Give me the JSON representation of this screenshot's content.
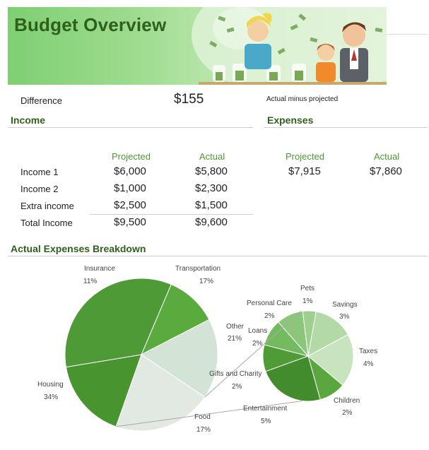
{
  "banner": {
    "title": "Budget Overview"
  },
  "difference": {
    "label": "Difference",
    "value": "$155",
    "note": "Actual minus projected"
  },
  "income": {
    "title": "Income",
    "headers": {
      "projected": "Projected",
      "actual": "Actual"
    },
    "rows": [
      {
        "label": "Income 1",
        "projected": "$6,000",
        "actual": "$5,800"
      },
      {
        "label": "Income 2",
        "projected": "$1,000",
        "actual": "$2,300"
      },
      {
        "label": "Extra income",
        "projected": "$2,500",
        "actual": "$1,500"
      },
      {
        "label": "Total Income",
        "projected": "$9,500",
        "actual": "$9,600"
      }
    ]
  },
  "expenses": {
    "title": "Expenses",
    "headers": {
      "projected": "Projected",
      "actual": "Actual"
    },
    "projected": "$7,915",
    "actual": "$7,860"
  },
  "breakdown": {
    "title": "Actual Expenses Breakdown"
  },
  "chart_data": {
    "type": "pie",
    "title": "Actual Expenses Breakdown",
    "main_pie": [
      {
        "name": "Insurance",
        "percent": 11,
        "label": "11%"
      },
      {
        "name": "Transportation",
        "percent": 17,
        "label": "17%"
      },
      {
        "name": "Other",
        "percent": 21,
        "label": "21%"
      },
      {
        "name": "Food",
        "percent": 17,
        "label": "17%"
      },
      {
        "name": "Housing",
        "percent": 34,
        "label": "34%"
      }
    ],
    "secondary_pie": [
      {
        "name": "Pets",
        "percent": 1,
        "label": "1%"
      },
      {
        "name": "Savings",
        "percent": 3,
        "label": "3%"
      },
      {
        "name": "Taxes",
        "percent": 4,
        "label": "4%"
      },
      {
        "name": "Children",
        "percent": 2,
        "label": "2%"
      },
      {
        "name": "Entertainment",
        "percent": 5,
        "label": "5%"
      },
      {
        "name": "Gifts and Charity",
        "percent": 2,
        "label": "2%"
      },
      {
        "name": "Loans",
        "percent": 2,
        "label": "2%"
      },
      {
        "name": "Personal Care",
        "percent": 2,
        "label": "2%"
      }
    ],
    "colors": {
      "Housing": "#4e9a36",
      "Insurance": "#5aab3e",
      "Transportation": "#d3e3d6",
      "Other": "#e2e9e2",
      "Food": "#48942f",
      "Pets": "#9fcf8f",
      "Savings": "#b3d9a6",
      "Taxes": "#c8e4bf",
      "Children": "#5aa73f",
      "Entertainment": "#428c2d",
      "Gifts and Charity": "#4f9c36",
      "Loans": "#74bb60",
      "Personal Care": "#8cc67a"
    }
  }
}
